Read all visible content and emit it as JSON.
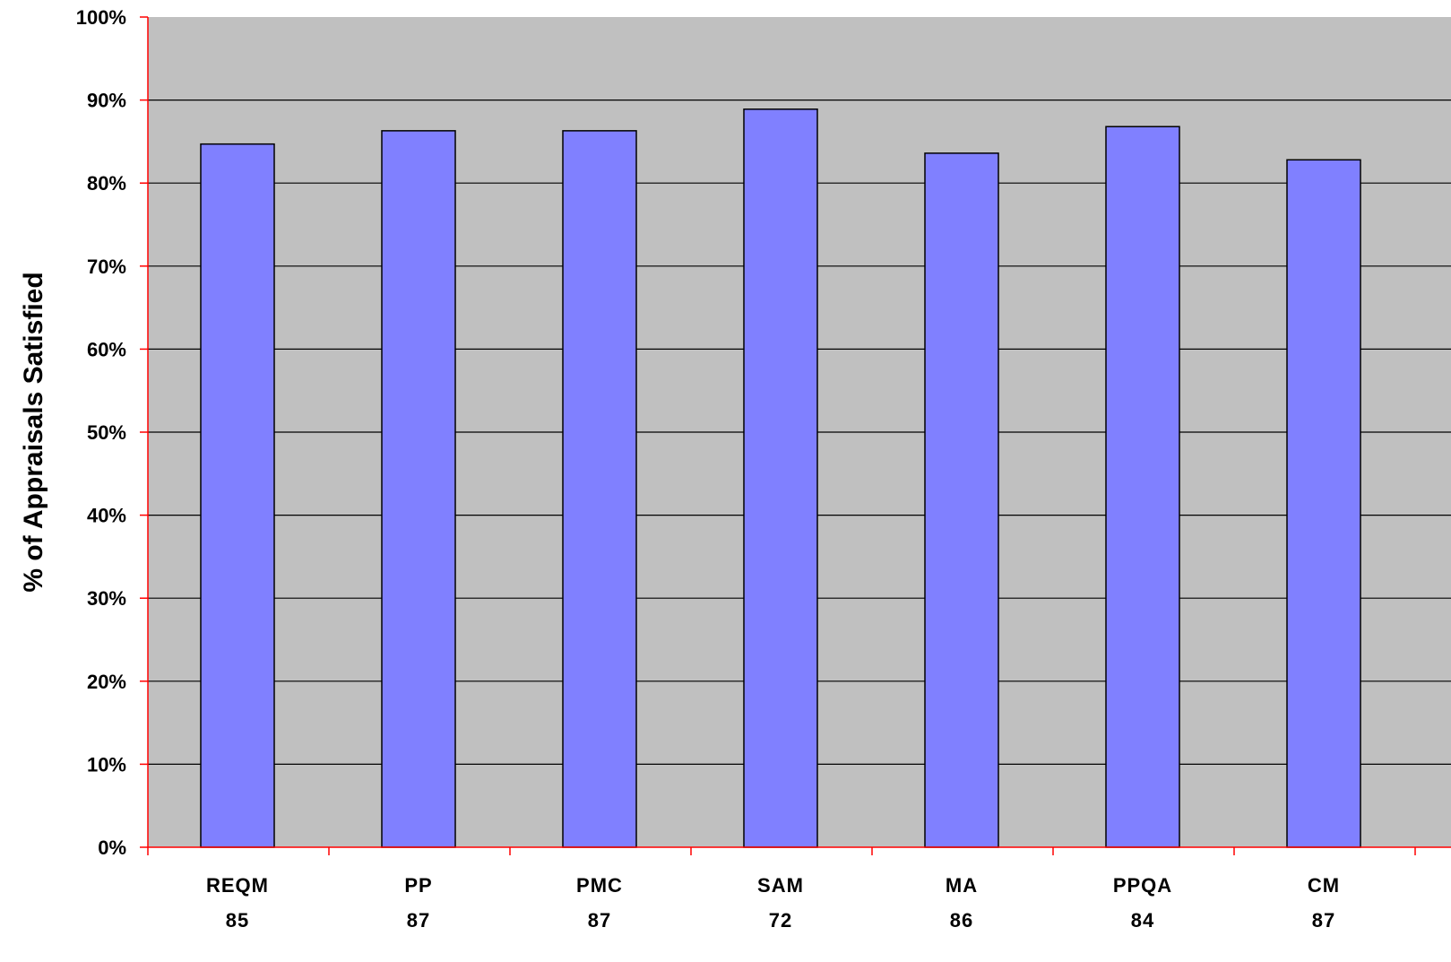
{
  "chart_data": {
    "type": "bar",
    "title": "",
    "xlabel": "",
    "ylabel": "% of Appraisals Satisfied",
    "categories": [
      "REQM",
      "PP",
      "PMC",
      "SAM",
      "MA",
      "PPQA",
      "CM"
    ],
    "category_counts": [
      "85",
      "87",
      "87",
      "72",
      "86",
      "84",
      "87"
    ],
    "values": [
      84.7,
      86.3,
      86.3,
      88.9,
      83.6,
      86.8,
      82.8
    ],
    "ylim": [
      0,
      100
    ],
    "yticks": [
      0,
      10,
      20,
      30,
      40,
      50,
      60,
      70,
      80,
      90,
      100
    ],
    "ytick_labels": [
      "0%",
      "10%",
      "20%",
      "30%",
      "40%",
      "50%",
      "60%",
      "70%",
      "80%",
      "90%",
      "100%"
    ],
    "grid": true,
    "legend": "none",
    "colors": {
      "bar_fill": "#8080ff",
      "bar_stroke": "#000000",
      "plot_background": "#c0c0c0",
      "gridline": "#000000",
      "axis": "#ff0000"
    }
  }
}
